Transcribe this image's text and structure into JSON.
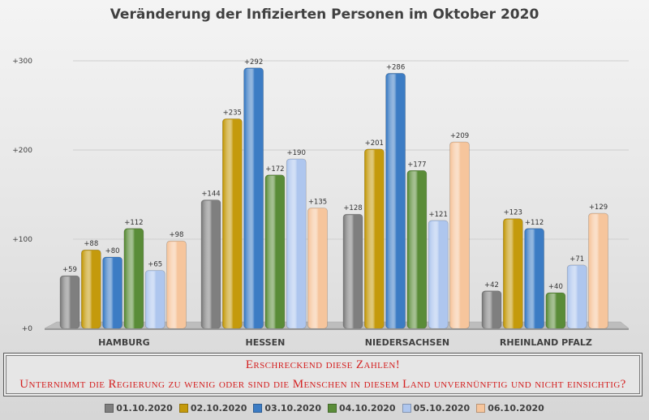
{
  "chart_data": {
    "type": "bar",
    "title": "Veränderung der Infizierten Personen im Oktober 2020",
    "categories": [
      "HAMBURG",
      "HESSEN",
      "NIEDERSACHSEN",
      "RHEINLAND PFALZ"
    ],
    "series": [
      {
        "name": "01.10.2020",
        "color": "#7f7f7f",
        "values": [
          59,
          144,
          128,
          42
        ],
        "labels": [
          "+59",
          "+144",
          "+128",
          "+42"
        ]
      },
      {
        "name": "02.10.2020",
        "color": "#c49a0c",
        "values": [
          88,
          235,
          201,
          123
        ],
        "labels": [
          "+88",
          "+235",
          "+201",
          "+123"
        ]
      },
      {
        "name": "03.10.2020",
        "color": "#3c7cc4",
        "values": [
          80,
          292,
          286,
          112
        ],
        "labels": [
          "+80",
          "+292",
          "+286",
          "+112"
        ]
      },
      {
        "name": "04.10.2020",
        "color": "#5a8c38",
        "values": [
          112,
          172,
          177,
          40
        ],
        "labels": [
          "+112",
          "+172",
          "+177",
          "+40"
        ]
      },
      {
        "name": "05.10.2020",
        "color": "#aec6ee",
        "values": [
          65,
          190,
          121,
          71
        ],
        "labels": [
          "+65",
          "+190",
          "+121",
          "+71"
        ]
      },
      {
        "name": "06.10.2020",
        "color": "#f6c59c",
        "values": [
          98,
          135,
          209,
          129
        ],
        "labels": [
          "+98",
          "+135",
          "+209",
          "+129"
        ]
      }
    ],
    "yticks": [
      0,
      100,
      200,
      300
    ],
    "ytick_labels": [
      "+0",
      "+100",
      "+200",
      "+300"
    ],
    "ylim": [
      0,
      300
    ],
    "grid": true,
    "legend_position": "bottom"
  },
  "note": {
    "line1": "Erschreckend diese Zahlen!",
    "line2": "Unternimmt die Regierung zu wenig oder sind die Menschen in diesem Land unvernünftig und nicht einsichtig?"
  }
}
